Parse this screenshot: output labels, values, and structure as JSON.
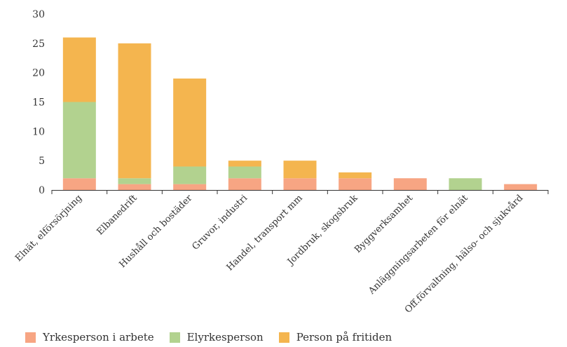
{
  "chart_data": {
    "type": "bar",
    "stacked": true,
    "categories": [
      "Elnät, elförsörjning",
      "Elbanedrift",
      "Hushåll och bostäder",
      "Gruvor, industri",
      "Handel, transport mm",
      "Jordbruk, skogsbruk",
      "Byggverksamhet",
      "Anläggningsarbeten för elnät",
      "Off.förvaltning, hälso- och sjukvård"
    ],
    "series": [
      {
        "name": "Yrkesperson i arbete",
        "color": "#f7a583",
        "values": [
          2,
          1,
          1,
          2,
          2,
          2,
          2,
          0,
          1
        ]
      },
      {
        "name": "Elyrkesperson",
        "color": "#b2d28f",
        "values": [
          13,
          1,
          3,
          2,
          0,
          0,
          0,
          2,
          0
        ]
      },
      {
        "name": "Person på fritiden",
        "color": "#f4b54f",
        "values": [
          11,
          23,
          15,
          1,
          3,
          1,
          0,
          0,
          0
        ]
      }
    ],
    "ylim": [
      0,
      30
    ],
    "yticks": [
      0,
      5,
      10,
      15,
      20,
      25,
      30
    ],
    "grid": false,
    "legend_position": "bottom-left",
    "title": "",
    "xlabel": "",
    "ylabel": ""
  }
}
